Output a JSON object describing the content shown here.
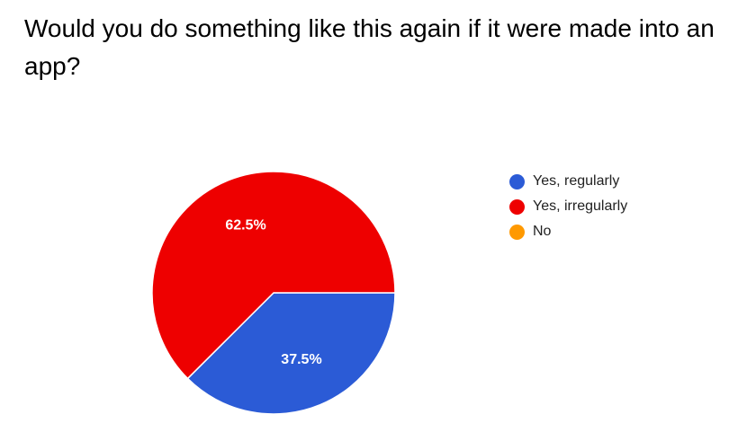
{
  "title": "Would you do something like this again if it were made into an app?",
  "chart_data": {
    "type": "pie",
    "title": "Would you do something like this again if it were made into an app?",
    "slices": [
      {
        "name": "Yes, regularly",
        "value": 37.5,
        "label": "37.5%",
        "color": "#2b5bd6"
      },
      {
        "name": "Yes, irregularly",
        "value": 62.5,
        "label": "62.5%",
        "color": "#ee0000"
      },
      {
        "name": "No",
        "value": 0,
        "label": "",
        "color": "#ff9900"
      }
    ],
    "legend_position": "right"
  }
}
